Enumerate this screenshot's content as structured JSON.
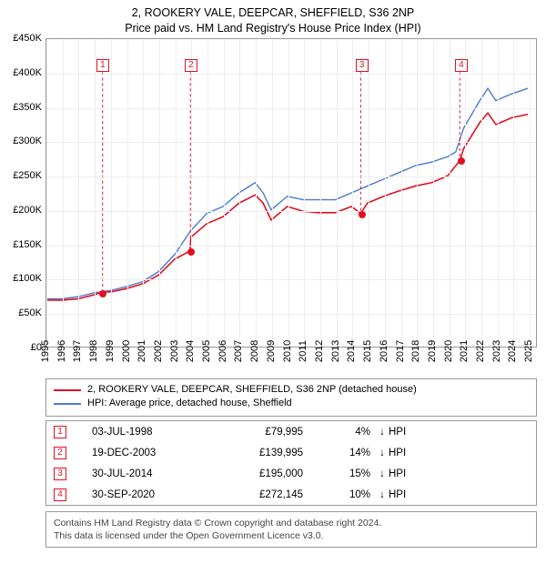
{
  "title_line1": "2, ROOKERY VALE, DEEPCAR, SHEFFIELD, S36 2NP",
  "title_line2": "Price paid vs. HM Land Registry's House Price Index (HPI)",
  "title_fontsize": 12.5,
  "chart": {
    "type": "line",
    "background_color": "#ffffff",
    "grid_color": "#eeeeee",
    "axis_color": "#999999",
    "text_color": "#000000",
    "label_fontsize": 11,
    "x": {
      "min": 1995,
      "max": 2025.5,
      "ticks": [
        1995,
        1996,
        1997,
        1998,
        1999,
        2000,
        2001,
        2002,
        2003,
        2004,
        2005,
        2006,
        2007,
        2008,
        2009,
        2010,
        2011,
        2012,
        2013,
        2014,
        2015,
        2016,
        2017,
        2018,
        2019,
        2020,
        2021,
        2022,
        2023,
        2024,
        2025
      ]
    },
    "y": {
      "min": 0,
      "max": 450000,
      "ticks": [
        0,
        50000,
        100000,
        150000,
        200000,
        250000,
        300000,
        350000,
        400000,
        450000
      ],
      "tick_labels": [
        "£0",
        "£50K",
        "£100K",
        "£150K",
        "£200K",
        "£250K",
        "£300K",
        "£350K",
        "£400K",
        "£450K"
      ]
    },
    "series": [
      {
        "name": "hpi",
        "label": "HPI: Average price, detached house, Sheffield",
        "color": "#4a7bd0",
        "line_width": 1.4,
        "points": [
          [
            1995,
            70000
          ],
          [
            1996,
            70000
          ],
          [
            1997,
            73000
          ],
          [
            1998,
            79000
          ],
          [
            1999,
            82000
          ],
          [
            2000,
            88000
          ],
          [
            2001,
            95000
          ],
          [
            2002,
            110000
          ],
          [
            2003,
            135000
          ],
          [
            2004,
            170000
          ],
          [
            2005,
            195000
          ],
          [
            2006,
            205000
          ],
          [
            2007,
            225000
          ],
          [
            2008,
            240000
          ],
          [
            2008.5,
            225000
          ],
          [
            2009,
            200000
          ],
          [
            2010,
            220000
          ],
          [
            2011,
            215000
          ],
          [
            2012,
            215000
          ],
          [
            2013,
            215000
          ],
          [
            2014,
            225000
          ],
          [
            2015,
            235000
          ],
          [
            2016,
            245000
          ],
          [
            2017,
            255000
          ],
          [
            2018,
            265000
          ],
          [
            2019,
            270000
          ],
          [
            2020,
            278000
          ],
          [
            2020.5,
            285000
          ],
          [
            2021,
            320000
          ],
          [
            2022,
            360000
          ],
          [
            2022.5,
            378000
          ],
          [
            2023,
            360000
          ],
          [
            2024,
            370000
          ],
          [
            2025,
            378000
          ]
        ]
      },
      {
        "name": "property",
        "label": "2, ROOKERY VALE, DEEPCAR, SHEFFIELD, S36 2NP (detached house)",
        "color": "#e01020",
        "line_width": 1.6,
        "points": [
          [
            1995,
            68000
          ],
          [
            1996,
            68000
          ],
          [
            1997,
            70000
          ],
          [
            1998,
            76000
          ],
          [
            1998.5,
            79995
          ],
          [
            1999,
            80000
          ],
          [
            2000,
            85000
          ],
          [
            2001,
            92000
          ],
          [
            2002,
            105000
          ],
          [
            2003,
            128000
          ],
          [
            2003.95,
            139995
          ],
          [
            2004,
            160000
          ],
          [
            2005,
            180000
          ],
          [
            2006,
            190000
          ],
          [
            2007,
            210000
          ],
          [
            2008,
            222000
          ],
          [
            2008.5,
            210000
          ],
          [
            2009,
            185000
          ],
          [
            2010,
            205000
          ],
          [
            2011,
            198000
          ],
          [
            2012,
            196000
          ],
          [
            2013,
            196000
          ],
          [
            2014,
            205000
          ],
          [
            2014.58,
            195000
          ],
          [
            2015,
            210000
          ],
          [
            2016,
            220000
          ],
          [
            2017,
            228000
          ],
          [
            2018,
            235000
          ],
          [
            2019,
            240000
          ],
          [
            2020,
            250000
          ],
          [
            2020.75,
            272145
          ],
          [
            2021,
            290000
          ],
          [
            2022,
            328000
          ],
          [
            2022.5,
            342000
          ],
          [
            2023,
            325000
          ],
          [
            2024,
            335000
          ],
          [
            2025,
            340000
          ]
        ]
      }
    ],
    "transaction_markers": [
      {
        "n": "1",
        "x": 1998.5,
        "y": 79995,
        "label_y": 412000
      },
      {
        "n": "2",
        "x": 2003.97,
        "y": 139995,
        "label_y": 412000
      },
      {
        "n": "3",
        "x": 2014.58,
        "y": 195000,
        "label_y": 412000
      },
      {
        "n": "4",
        "x": 2020.75,
        "y": 272145,
        "label_y": 412000
      }
    ],
    "marker_border_color": "#e01020",
    "marker_text_color": "#e01020",
    "marker_dot_color": "#e01020",
    "marker_line_color": "#e01020"
  },
  "legend": {
    "border_color": "#999999",
    "items": [
      {
        "color": "#e01020",
        "label": "2, ROOKERY VALE, DEEPCAR, SHEFFIELD, S36 2NP (detached house)"
      },
      {
        "color": "#4a7bd0",
        "label": "HPI: Average price, detached house, Sheffield"
      }
    ]
  },
  "transactions": {
    "border_color": "#999999",
    "marker_border_color": "#e01020",
    "marker_text_color": "#e01020",
    "vs_label": "HPI",
    "rows": [
      {
        "n": "1",
        "date": "03-JUL-1998",
        "price": "£79,995",
        "delta": "4%",
        "arrow": "↓"
      },
      {
        "n": "2",
        "date": "19-DEC-2003",
        "price": "£139,995",
        "delta": "14%",
        "arrow": "↓"
      },
      {
        "n": "3",
        "date": "30-JUL-2014",
        "price": "£195,000",
        "delta": "15%",
        "arrow": "↓"
      },
      {
        "n": "4",
        "date": "30-SEP-2020",
        "price": "£272,145",
        "delta": "10%",
        "arrow": "↓"
      }
    ]
  },
  "attribution": {
    "line1": "Contains HM Land Registry data © Crown copyright and database right 2024.",
    "line2": "This data is licensed under the Open Government Licence v3.0.",
    "text_color": "#444444",
    "border_color": "#999999"
  }
}
